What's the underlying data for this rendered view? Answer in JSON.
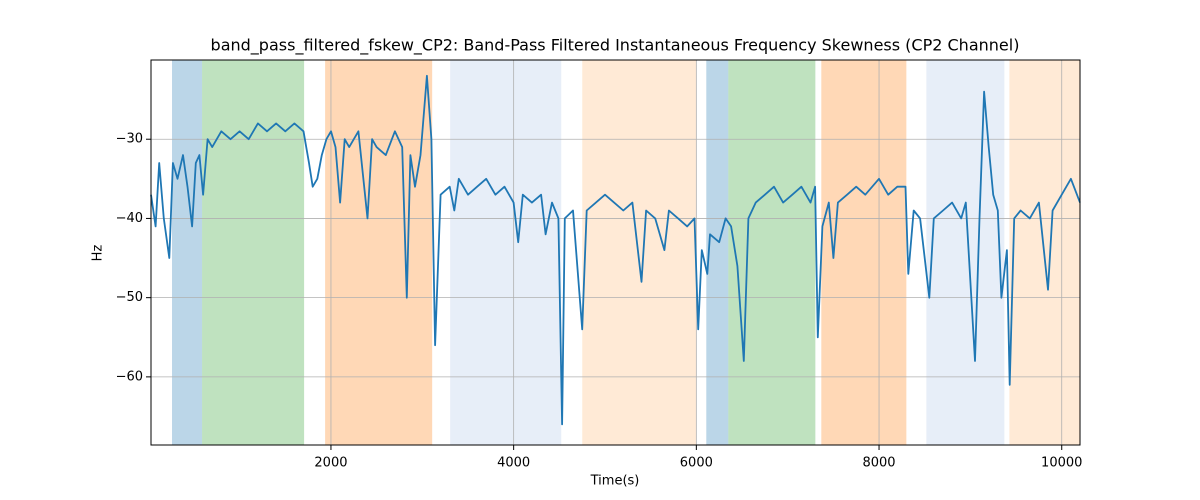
{
  "chart_data": {
    "type": "line",
    "title": "band_pass_filtered_fskew_CP2: Band-Pass Filtered Instantaneous Frequency Skewness (CP2 Channel)",
    "xlabel": "Time(s)",
    "ylabel": "Hz",
    "xlim": [
      30,
      10200
    ],
    "ylim": [
      -68.6,
      -20
    ],
    "xticks": [
      2000,
      4000,
      6000,
      8000,
      10000
    ],
    "yticks": [
      {
        "value": -60,
        "label": "−60"
      },
      {
        "value": -50,
        "label": "−50"
      },
      {
        "value": -40,
        "label": "−40"
      },
      {
        "value": -30,
        "label": "−30"
      }
    ],
    "grid": true,
    "regions": [
      {
        "start": 260,
        "end": 589,
        "color": "#1f77b4",
        "opacity": 0.3
      },
      {
        "start": 589,
        "end": 1706,
        "color": "#2ca02c",
        "opacity": 0.3
      },
      {
        "start": 1936,
        "end": 3108,
        "color": "#ff7f0e",
        "opacity": 0.3
      },
      {
        "start": 3305,
        "end": 4521,
        "color": "#aec7e8",
        "opacity": 0.3
      },
      {
        "start": 4751,
        "end": 6000,
        "color": "#ffbb78",
        "opacity": 0.3
      },
      {
        "start": 6109,
        "end": 6350,
        "color": "#1f77b4",
        "opacity": 0.3
      },
      {
        "start": 6350,
        "end": 7303,
        "color": "#2ca02c",
        "opacity": 0.3
      },
      {
        "start": 7368,
        "end": 8299,
        "color": "#ff7f0e",
        "opacity": 0.3
      },
      {
        "start": 8518,
        "end": 9372,
        "color": "#aec7e8",
        "opacity": 0.3
      },
      {
        "start": 9427,
        "end": 10200,
        "color": "#ffbb78",
        "opacity": 0.3
      }
    ],
    "series": [
      {
        "color": "#1f77b4",
        "x": [
          30,
          80,
          120,
          170,
          230,
          270,
          320,
          380,
          430,
          480,
          520,
          560,
          600,
          650,
          700,
          800,
          900,
          1000,
          1100,
          1200,
          1300,
          1400,
          1500,
          1600,
          1700,
          1760,
          1800,
          1850,
          1900,
          1950,
          2000,
          2050,
          2100,
          2150,
          2200,
          2300,
          2400,
          2450,
          2500,
          2600,
          2700,
          2780,
          2830,
          2870,
          2920,
          2980,
          3050,
          3100,
          3140,
          3200,
          3300,
          3350,
          3400,
          3500,
          3600,
          3700,
          3800,
          3900,
          4000,
          4050,
          4100,
          4200,
          4300,
          4350,
          4420,
          4490,
          4530,
          4560,
          4650,
          4750,
          4800,
          4900,
          5000,
          5100,
          5200,
          5300,
          5400,
          5450,
          5550,
          5650,
          5700,
          5800,
          5900,
          5980,
          6020,
          6060,
          6120,
          6150,
          6250,
          6320,
          6380,
          6450,
          6520,
          6570,
          6650,
          6750,
          6850,
          6950,
          7050,
          7150,
          7250,
          7300,
          7330,
          7380,
          7450,
          7500,
          7550,
          7650,
          7750,
          7850,
          8000,
          8100,
          8200,
          8290,
          8320,
          8380,
          8450,
          8550,
          8600,
          8700,
          8800,
          8900,
          8950,
          9050,
          9100,
          9150,
          9200,
          9250,
          9300,
          9340,
          9400,
          9430,
          9480,
          9550,
          9650,
          9750,
          9850,
          9900,
          10000,
          10100,
          10200
        ],
        "values": [
          -37,
          -41,
          -33,
          -40,
          -45,
          -33,
          -35,
          -32,
          -36,
          -41,
          -33,
          -32,
          -37,
          -30,
          -31,
          -29,
          -30,
          -29,
          -30,
          -28,
          -29,
          -28,
          -29,
          -28,
          -29,
          -33,
          -36,
          -35,
          -32,
          -30,
          -29,
          -31,
          -38,
          -30,
          -31,
          -29,
          -40,
          -30,
          -31,
          -32,
          -29,
          -31,
          -50,
          -32,
          -36,
          -32,
          -22,
          -30,
          -56,
          -37,
          -36,
          -39,
          -35,
          -37,
          -36,
          -35,
          -37,
          -36,
          -38,
          -43,
          -37,
          -38,
          -37,
          -42,
          -38,
          -40,
          -66,
          -40,
          -39,
          -54,
          -39,
          -38,
          -37,
          -38,
          -39,
          -38,
          -48,
          -39,
          -40,
          -44,
          -39,
          -40,
          -41,
          -40,
          -54,
          -44,
          -47,
          -42,
          -43,
          -40,
          -41,
          -46,
          -58,
          -40,
          -38,
          -37,
          -36,
          -38,
          -37,
          -36,
          -38,
          -36,
          -55,
          -41,
          -38,
          -45,
          -38,
          -37,
          -36,
          -37,
          -35,
          -37,
          -36,
          -36,
          -47,
          -39,
          -40,
          -50,
          -40,
          -39,
          -38,
          -40,
          -38,
          -58,
          -40,
          -24,
          -31,
          -37,
          -39,
          -50,
          -44,
          -61,
          -40,
          -39,
          -40,
          -38,
          -49,
          -39,
          -37,
          -35,
          -38
        ]
      }
    ]
  }
}
